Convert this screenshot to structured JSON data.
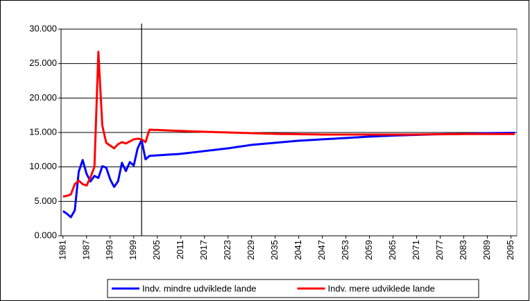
{
  "chart_data": {
    "type": "line",
    "x": [
      1981,
      1982,
      1983,
      1984,
      1985,
      1986,
      1987,
      1988,
      1989,
      1990,
      1991,
      1992,
      1993,
      1994,
      1995,
      1996,
      1997,
      1998,
      1999,
      2000,
      2001,
      2002,
      2003,
      2004,
      2005,
      2006,
      2007,
      2008,
      2009,
      2010,
      2011,
      2012,
      2013,
      2014,
      2015,
      2016,
      2017,
      2018,
      2019,
      2020,
      2021,
      2022,
      2023,
      2024,
      2025,
      2026,
      2027,
      2028,
      2029,
      2030,
      2031,
      2032,
      2033,
      2034,
      2035,
      2036,
      2037,
      2038,
      2039,
      2040,
      2041,
      2042,
      2043,
      2044,
      2045,
      2046,
      2047,
      2048,
      2049,
      2050,
      2051,
      2052,
      2053,
      2054,
      2055,
      2056,
      2057,
      2058,
      2059,
      2060,
      2061,
      2062,
      2063,
      2064,
      2065,
      2066,
      2067,
      2068,
      2069,
      2070,
      2071,
      2072,
      2073,
      2074,
      2075,
      2076,
      2077,
      2078,
      2079,
      2080,
      2081,
      2082,
      2083,
      2084,
      2085,
      2086,
      2087,
      2088,
      2089,
      2090,
      2091,
      2092,
      2093,
      2094,
      2095,
      2096
    ],
    "series": [
      {
        "name": "Indv. mindre udviklede lande",
        "color": "#0000ff",
        "values": [
          3600,
          3200,
          2700,
          3700,
          9300,
          11000,
          9000,
          7900,
          8700,
          8400,
          10100,
          9900,
          8200,
          7100,
          7900,
          10600,
          9400,
          10700,
          10200,
          12700,
          13900,
          11100,
          11600,
          11640,
          11680,
          11710,
          11750,
          11790,
          11830,
          11860,
          11900,
          11970,
          12030,
          12100,
          12170,
          12230,
          12300,
          12370,
          12430,
          12500,
          12570,
          12630,
          12700,
          12780,
          12870,
          12950,
          13030,
          13120,
          13200,
          13250,
          13300,
          13350,
          13400,
          13450,
          13500,
          13550,
          13600,
          13650,
          13700,
          13750,
          13800,
          13830,
          13870,
          13900,
          13930,
          13970,
          14000,
          14030,
          14070,
          14100,
          14130,
          14170,
          14200,
          14230,
          14270,
          14300,
          14330,
          14370,
          14400,
          14420,
          14450,
          14480,
          14500,
          14520,
          14550,
          14570,
          14580,
          14600,
          14620,
          14630,
          14650,
          14670,
          14680,
          14700,
          14720,
          14730,
          14750,
          14760,
          14770,
          14780,
          14780,
          14790,
          14800,
          14820,
          14830,
          14850,
          14870,
          14880,
          14900,
          14910,
          14910,
          14920,
          14930,
          14940,
          14940,
          14950
        ]
      },
      {
        "name": "Indv. mere udviklede lande",
        "color": "#ff0000",
        "values": [
          5700,
          5800,
          6000,
          7500,
          8000,
          7500,
          7300,
          8500,
          10000,
          26700,
          16000,
          13500,
          13100,
          12700,
          13300,
          13600,
          13400,
          13700,
          14000,
          14100,
          14000,
          13600,
          15400,
          15380,
          15360,
          15340,
          15310,
          15290,
          15260,
          15240,
          15220,
          15200,
          15180,
          15160,
          15140,
          15120,
          15100,
          15080,
          15070,
          15050,
          15030,
          15020,
          15000,
          14980,
          14970,
          14950,
          14930,
          14920,
          14900,
          14880,
          14870,
          14850,
          14830,
          14820,
          14800,
          14790,
          14780,
          14770,
          14770,
          14760,
          14750,
          14740,
          14730,
          14720,
          14720,
          14710,
          14700,
          14700,
          14700,
          14700,
          14700,
          14700,
          14700,
          14700,
          14700,
          14700,
          14700,
          14700,
          14700,
          14700,
          14700,
          14700,
          14700,
          14700,
          14700,
          14700,
          14700,
          14700,
          14700,
          14700,
          14710,
          14710,
          14720,
          14720,
          14730,
          14730,
          14740,
          14740,
          14750,
          14750,
          14760,
          14760,
          14770,
          14770,
          14770,
          14770,
          14770,
          14770,
          14770,
          14770,
          14770,
          14770,
          14770,
          14770,
          14770,
          14770
        ]
      }
    ],
    "xlim": [
      1980.5,
      2096.5
    ],
    "xticks": [
      1981,
      1987,
      1993,
      1999,
      2005,
      2011,
      2017,
      2023,
      2029,
      2035,
      2041,
      2047,
      2053,
      2059,
      2065,
      2071,
      2077,
      2083,
      2089,
      2095
    ],
    "ylim": [
      0,
      30000
    ],
    "yticks": [
      {
        "value": 0,
        "label": "0.000"
      },
      {
        "value": 5000,
        "label": "5.000"
      },
      {
        "value": 10000,
        "label": "10.000"
      },
      {
        "value": 15000,
        "label": "15.000"
      },
      {
        "value": 20000,
        "label": "20.000"
      },
      {
        "value": 25000,
        "label": "25.000"
      },
      {
        "value": 30000,
        "label": "30.000"
      }
    ],
    "grid": true,
    "vline_x": 2001,
    "legend": "bottom"
  }
}
